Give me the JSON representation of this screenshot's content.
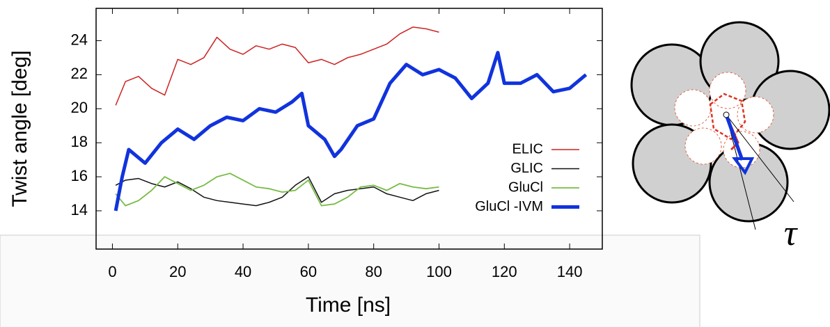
{
  "chart_data": {
    "type": "line",
    "xlabel": "Time [ns]",
    "ylabel": "Twist angle [deg]",
    "xlim": [
      -5,
      150
    ],
    "ylim": [
      11.75,
      25.9
    ],
    "xticks": [
      0,
      20,
      40,
      60,
      80,
      100,
      120,
      140
    ],
    "yticks": [
      14,
      16,
      18,
      20,
      22,
      24
    ],
    "legend": "right",
    "series": [
      {
        "name": "ELIC",
        "color": "#cc2222",
        "width": 1.5,
        "x": [
          1,
          4,
          8,
          12,
          16,
          20,
          24,
          28,
          32,
          36,
          40,
          44,
          48,
          52,
          56,
          60,
          64,
          68,
          72,
          76,
          80,
          84,
          88,
          92,
          96,
          100
        ],
        "values": [
          20.2,
          21.6,
          21.9,
          21.2,
          20.8,
          22.9,
          22.6,
          23.0,
          24.2,
          23.5,
          23.2,
          23.7,
          23.5,
          23.8,
          23.6,
          22.7,
          22.9,
          22.6,
          23.0,
          23.2,
          23.5,
          23.8,
          24.4,
          24.8,
          24.7,
          24.5
        ]
      },
      {
        "name": "GLIC",
        "color": "#111111",
        "width": 1.5,
        "x": [
          1,
          4,
          8,
          12,
          16,
          20,
          24,
          28,
          32,
          36,
          40,
          44,
          48,
          52,
          56,
          60,
          64,
          68,
          72,
          76,
          80,
          84,
          88,
          92,
          96,
          100
        ],
        "values": [
          15.5,
          15.8,
          15.9,
          15.6,
          15.4,
          15.7,
          15.3,
          14.8,
          14.6,
          14.5,
          14.4,
          14.3,
          14.5,
          14.8,
          15.5,
          16.0,
          14.5,
          15.0,
          15.2,
          15.3,
          15.4,
          15.0,
          14.8,
          14.6,
          15.0,
          15.2
        ]
      },
      {
        "name": "GluCl",
        "color": "#77bb44",
        "width": 1.8,
        "x": [
          1,
          4,
          8,
          12,
          16,
          20,
          24,
          28,
          32,
          36,
          40,
          44,
          48,
          52,
          56,
          60,
          64,
          68,
          72,
          76,
          80,
          84,
          88,
          92,
          96,
          100
        ],
        "values": [
          15.0,
          14.3,
          14.6,
          15.2,
          16.0,
          15.6,
          15.2,
          15.5,
          16.0,
          16.2,
          15.8,
          15.4,
          15.3,
          15.1,
          15.2,
          15.8,
          14.3,
          14.4,
          14.8,
          15.4,
          15.5,
          15.2,
          15.6,
          15.4,
          15.3,
          15.4
        ]
      },
      {
        "name": "GluCl -IVM",
        "color": "#1133dd",
        "width": 5,
        "x": [
          1,
          3,
          5,
          10,
          15,
          20,
          25,
          30,
          35,
          40,
          45,
          50,
          55,
          58,
          60,
          65,
          68,
          70,
          75,
          80,
          85,
          90,
          95,
          100,
          105,
          110,
          115,
          118,
          120,
          125,
          130,
          135,
          140,
          145
        ],
        "values": [
          14.0,
          16.0,
          17.6,
          16.8,
          18.0,
          18.8,
          18.2,
          19.0,
          19.5,
          19.3,
          20.0,
          19.8,
          20.4,
          20.9,
          19.0,
          18.2,
          17.2,
          17.6,
          19.0,
          19.4,
          21.5,
          22.6,
          22.0,
          22.3,
          21.8,
          20.6,
          21.5,
          23.3,
          21.5,
          21.5,
          22.0,
          21.0,
          21.2,
          22.0
        ]
      }
    ]
  },
  "diagram": {
    "label": "τ"
  }
}
